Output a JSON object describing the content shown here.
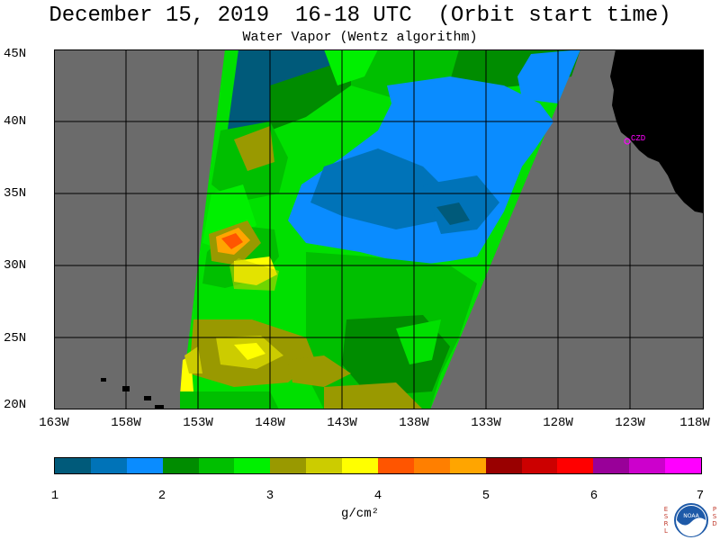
{
  "header": {
    "title": "December 15, 2019  16-18 UTC  (Orbit start time)",
    "subtitle": "Water Vapor (Wentz algorithm)"
  },
  "map": {
    "lat_labels": [
      "45N",
      "40N",
      "35N",
      "30N",
      "25N",
      "20N"
    ],
    "lon_labels": [
      "163W",
      "158W",
      "153W",
      "148W",
      "143W",
      "138W",
      "133W",
      "128W",
      "123W",
      "118W"
    ],
    "station_label": "CZD",
    "colors": {
      "no_data": "#6b6b6b",
      "land": "#000000",
      "grid": "#000000",
      "station": "#ff00ff"
    }
  },
  "colorbar": {
    "ticks": [
      "1",
      "2",
      "3",
      "4",
      "5",
      "6",
      "7"
    ],
    "units": "g/cm²",
    "colors": [
      "#005a7a",
      "#0073b8",
      "#0a8cff",
      "#008c00",
      "#00bf00",
      "#00f000",
      "#999900",
      "#cccc00",
      "#ffff00",
      "#ff5500",
      "#ff7f00",
      "#ffa500",
      "#990000",
      "#cc0000",
      "#ff0000",
      "#990099",
      "#cc00cc",
      "#ff00ff"
    ]
  },
  "logo": {
    "left_letters": "ESRL",
    "right_letters": "PSD",
    "center_text": "NOAA"
  }
}
